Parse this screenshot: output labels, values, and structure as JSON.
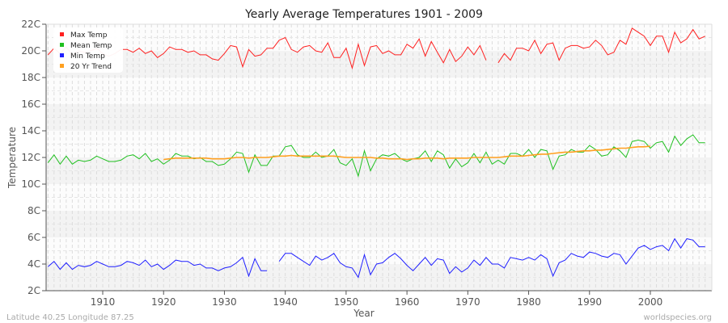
{
  "chart_data": {
    "type": "line",
    "title": "Yearly Average Temperatures 1901 - 2009",
    "xlabel": "Year",
    "ylabel": "Temperature",
    "xlim": [
      1901,
      2009
    ],
    "ylim": [
      2,
      22
    ],
    "x_ticks": [
      1910,
      1920,
      1930,
      1940,
      1950,
      1960,
      1970,
      1980,
      1990,
      2000
    ],
    "y_ticks": [
      "2C",
      "4C",
      "6C",
      "8C",
      "10C",
      "12C",
      "14C",
      "16C",
      "18C",
      "20C",
      "22C"
    ],
    "grid": true,
    "legend_position": "top-left",
    "footer_left": "Latitude 40.25 Longitude 87.25",
    "footer_right": "worldspecies.org",
    "series": [
      {
        "name": "Max Temp",
        "color": "#ff2020",
        "start_year": 1901,
        "values": [
          19.7,
          20.2,
          19.8,
          20.3,
          19.7,
          20.0,
          19.9,
          20.0,
          20.2,
          19.8,
          19.6,
          19.8,
          20.1,
          20.1,
          19.9,
          20.2,
          19.8,
          20.0,
          19.5,
          19.8,
          20.3,
          20.1,
          20.1,
          19.9,
          20.0,
          19.7,
          19.7,
          19.4,
          19.3,
          19.8,
          20.4,
          20.3,
          18.8,
          20.1,
          19.6,
          19.7,
          20.2,
          20.2,
          20.8,
          21.0,
          20.1,
          19.9,
          20.3,
          20.4,
          20.0,
          19.9,
          20.6,
          19.5,
          19.5,
          20.2,
          18.7,
          20.5,
          18.9,
          20.3,
          20.4,
          19.8,
          20.0,
          19.7,
          19.7,
          20.5,
          20.2,
          20.9,
          19.6,
          20.7,
          19.9,
          19.1,
          20.1,
          19.2,
          19.6,
          20.3,
          19.7,
          20.4,
          19.3,
          null,
          19.1,
          19.8,
          19.3,
          20.2,
          20.2,
          20.0,
          20.8,
          19.8,
          20.5,
          20.6,
          19.3,
          20.2,
          20.4,
          20.4,
          20.2,
          20.3,
          20.8,
          20.4,
          19.7,
          19.9,
          20.8,
          20.5,
          21.7,
          21.4,
          21.1,
          20.4,
          21.1,
          21.1,
          19.9,
          21.4,
          20.6,
          20.9,
          21.6,
          20.9,
          21.1
        ]
      },
      {
        "name": "Mean Temp",
        "color": "#20c020",
        "start_year": 1901,
        "values": [
          11.6,
          12.2,
          11.5,
          12.1,
          11.5,
          11.8,
          11.7,
          11.8,
          12.1,
          11.9,
          11.7,
          11.7,
          11.8,
          12.1,
          12.2,
          11.9,
          12.3,
          11.7,
          11.9,
          11.5,
          11.8,
          12.3,
          12.1,
          12.1,
          11.9,
          12.0,
          11.7,
          11.7,
          11.4,
          11.5,
          11.9,
          12.4,
          12.3,
          10.9,
          12.2,
          11.4,
          11.4,
          12.1,
          12.1,
          12.8,
          12.9,
          12.2,
          12.0,
          12.0,
          12.4,
          12.0,
          12.1,
          12.6,
          11.6,
          11.4,
          11.9,
          10.6,
          12.5,
          11.0,
          11.9,
          12.2,
          12.1,
          12.3,
          11.9,
          11.7,
          11.9,
          12.0,
          12.5,
          11.7,
          12.5,
          12.2,
          11.2,
          11.9,
          11.3,
          11.6,
          12.3,
          11.6,
          12.4,
          11.5,
          11.8,
          11.5,
          12.3,
          12.3,
          12.1,
          12.6,
          12.0,
          12.6,
          12.5,
          11.1,
          12.1,
          12.2,
          12.6,
          12.4,
          12.4,
          12.9,
          12.6,
          12.1,
          12.2,
          12.8,
          12.5,
          12.0,
          13.2,
          13.3,
          13.2,
          12.7,
          13.1,
          13.2,
          12.4,
          13.6,
          12.9,
          13.4,
          13.7,
          13.1,
          13.1
        ]
      },
      {
        "name": "Min Temp",
        "color": "#2020ff",
        "start_year": 1901,
        "values": [
          3.8,
          4.2,
          3.6,
          4.1,
          3.6,
          3.9,
          3.8,
          3.9,
          4.2,
          4.0,
          3.8,
          3.8,
          3.9,
          4.2,
          4.1,
          3.9,
          4.3,
          3.8,
          4.0,
          3.6,
          3.9,
          4.3,
          4.2,
          4.2,
          3.9,
          4.0,
          3.7,
          3.7,
          3.5,
          3.7,
          3.8,
          4.1,
          4.5,
          3.1,
          4.4,
          3.5,
          3.5,
          null,
          4.2,
          4.8,
          4.8,
          4.5,
          4.2,
          3.9,
          4.6,
          4.3,
          4.5,
          4.8,
          4.1,
          3.8,
          3.7,
          3.0,
          4.7,
          3.2,
          4.0,
          4.1,
          4.5,
          4.8,
          4.4,
          3.9,
          3.5,
          4.0,
          4.5,
          3.9,
          4.4,
          4.3,
          3.3,
          3.8,
          3.4,
          3.7,
          4.3,
          3.9,
          4.5,
          4.0,
          4.0,
          3.7,
          4.5,
          4.4,
          4.3,
          4.5,
          4.3,
          4.7,
          4.4,
          3.1,
          4.1,
          4.3,
          4.8,
          4.6,
          4.5,
          4.9,
          4.8,
          4.6,
          4.5,
          4.8,
          4.7,
          4.0,
          4.6,
          5.2,
          5.4,
          5.1,
          5.3,
          5.4,
          5.0,
          5.9,
          5.2,
          5.9,
          5.8,
          5.3,
          5.3
        ]
      },
      {
        "name": "20 Yr Trend",
        "color": "#ffa020",
        "start_year": 1920,
        "values": [
          11.85,
          11.9,
          11.95,
          11.95,
          11.95,
          11.95,
          11.95,
          11.95,
          11.9,
          11.9,
          11.9,
          11.95,
          12.0,
          12.0,
          11.95,
          12.0,
          12.0,
          12.0,
          12.05,
          12.1,
          12.1,
          12.15,
          12.1,
          12.1,
          12.1,
          12.1,
          12.1,
          12.1,
          12.1,
          12.05,
          12.0,
          12.0,
          12.0,
          12.0,
          12.0,
          11.95,
          11.95,
          11.9,
          11.9,
          11.9,
          11.85,
          11.9,
          11.9,
          11.95,
          11.95,
          11.95,
          11.9,
          11.95,
          11.95,
          11.95,
          11.95,
          12.0,
          12.0,
          12.0,
          12.0,
          12.0,
          12.05,
          12.1,
          12.1,
          12.1,
          12.15,
          12.2,
          12.25,
          12.25,
          12.3,
          12.35,
          12.4,
          12.4,
          12.45,
          12.5,
          12.5,
          12.55,
          12.55,
          12.6,
          12.65,
          12.7,
          12.7,
          12.75,
          12.8,
          12.8,
          12.85
        ]
      }
    ]
  }
}
